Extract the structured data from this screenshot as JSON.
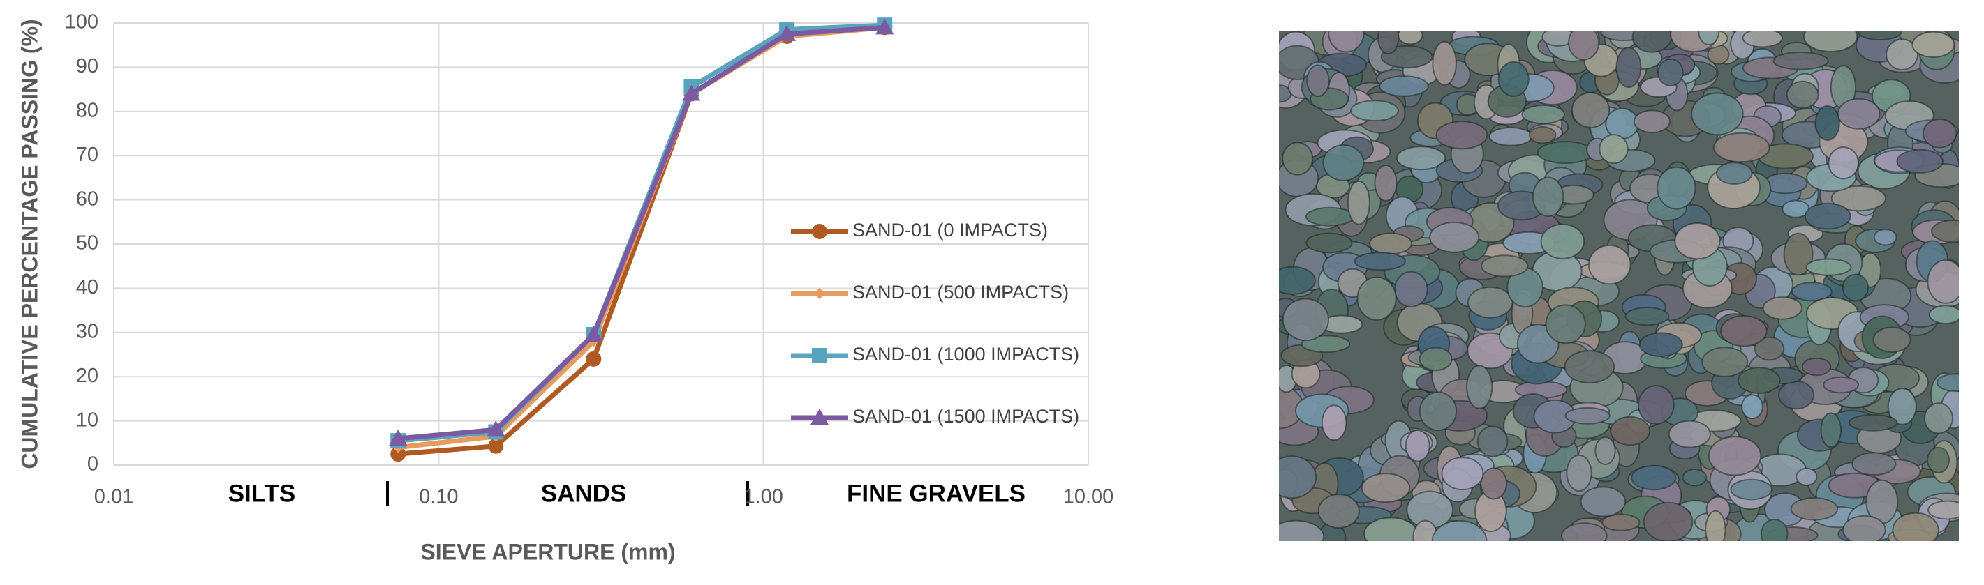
{
  "chart_data": {
    "type": "line",
    "x_label": "SIEVE APERTURE (mm)",
    "y_label": "CUMULATIVE PERCENTAGE PASSING (%)",
    "annotations": [
      "SILTS",
      "SANDS",
      "FINE GRAVELS"
    ],
    "x": [
      0.075,
      0.15,
      0.3,
      0.6,
      1.18,
      2.36
    ],
    "x_log": true,
    "xlim": [
      0.01,
      10
    ],
    "xticks": [
      {
        "value": 0.01,
        "label": "0.01"
      },
      {
        "value": 0.1,
        "label": "0.10"
      },
      {
        "value": 1,
        "label": "1.00"
      },
      {
        "value": 10,
        "label": "10.00"
      }
    ],
    "ylim": [
      0,
      100
    ],
    "yticks": [
      0,
      10,
      20,
      30,
      40,
      50,
      60,
      70,
      80,
      90,
      100
    ],
    "grid": true,
    "legend": "right",
    "series": [
      {
        "name": "SAND-01 (0 IMPACTS)",
        "color": "#b05a23",
        "marker": "circle",
        "values": [
          2.5,
          4.3,
          24,
          84,
          97,
          99
        ]
      },
      {
        "name": "SAND-01 (500 IMPACTS)",
        "color": "#e89b5c",
        "marker": "diamond",
        "values": [
          4,
          6.5,
          28,
          84,
          97,
          99
        ]
      },
      {
        "name": "SAND-01 (1000 IMPACTS)",
        "color": "#5aa3be",
        "marker": "square",
        "values": [
          5.5,
          7.5,
          29.5,
          85.5,
          98.5,
          99.5
        ]
      },
      {
        "name": "SAND-01 (1500 IMPACTS)",
        "color": "#7a5aa0",
        "marker": "triangle",
        "values": [
          6,
          8,
          29.5,
          84,
          97.5,
          99
        ]
      }
    ]
  }
}
